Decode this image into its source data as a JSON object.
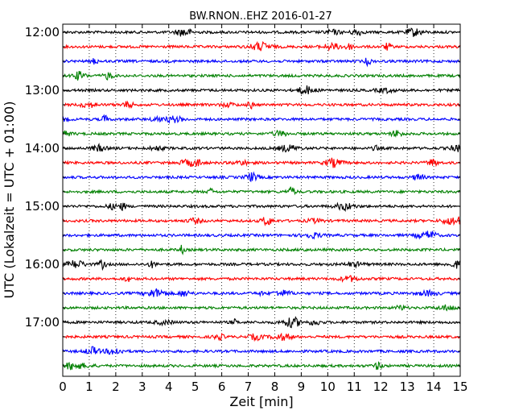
{
  "chart_data": {
    "type": "line",
    "title": "BW.RNON..EHZ 2016-01-27",
    "xlabel": "Zeit  [min]",
    "ylabel": "UTC (Lokalzeit = UTC + 01:00)",
    "x_ticks": [
      "0",
      "1",
      "2",
      "3",
      "4",
      "5",
      "6",
      "7",
      "8",
      "9",
      "10",
      "11",
      "12",
      "13",
      "14",
      "15"
    ],
    "xlim": [
      0,
      15
    ],
    "y_ticks": [
      "12:00",
      "13:00",
      "14:00",
      "15:00",
      "16:00",
      "17:00"
    ],
    "grid": "vertical-dotted",
    "trace_colors": [
      "#000000",
      "#ff0000",
      "#0000ff",
      "#008000"
    ],
    "traces": [
      {
        "start": "12:00",
        "color": "#000000"
      },
      {
        "start": "12:15",
        "color": "#ff0000"
      },
      {
        "start": "12:30",
        "color": "#0000ff"
      },
      {
        "start": "12:45",
        "color": "#008000"
      },
      {
        "start": "13:00",
        "color": "#000000"
      },
      {
        "start": "13:15",
        "color": "#ff0000"
      },
      {
        "start": "13:30",
        "color": "#0000ff"
      },
      {
        "start": "13:45",
        "color": "#008000"
      },
      {
        "start": "14:00",
        "color": "#000000"
      },
      {
        "start": "14:15",
        "color": "#ff0000"
      },
      {
        "start": "14:30",
        "color": "#0000ff"
      },
      {
        "start": "14:45",
        "color": "#008000"
      },
      {
        "start": "15:00",
        "color": "#000000"
      },
      {
        "start": "15:15",
        "color": "#ff0000"
      },
      {
        "start": "15:30",
        "color": "#0000ff"
      },
      {
        "start": "15:45",
        "color": "#008000"
      },
      {
        "start": "16:00",
        "color": "#000000"
      },
      {
        "start": "16:15",
        "color": "#ff0000"
      },
      {
        "start": "16:30",
        "color": "#0000ff"
      },
      {
        "start": "16:45",
        "color": "#008000"
      },
      {
        "start": "17:00",
        "color": "#000000"
      },
      {
        "start": "17:15",
        "color": "#ff0000"
      },
      {
        "start": "17:30",
        "color": "#0000ff"
      },
      {
        "start": "17:45",
        "color": "#008000"
      }
    ]
  }
}
